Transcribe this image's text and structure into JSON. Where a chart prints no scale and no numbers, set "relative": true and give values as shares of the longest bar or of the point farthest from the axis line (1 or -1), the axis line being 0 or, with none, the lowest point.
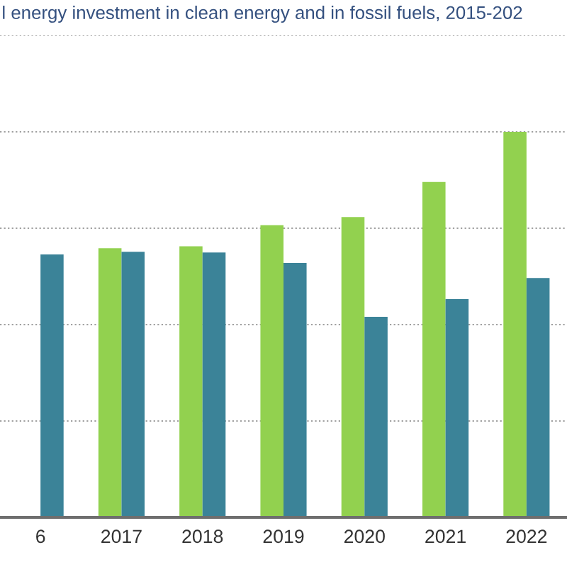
{
  "chart_data": {
    "type": "bar",
    "title": "l energy investment in clean energy and in fossil fuels, 2015-202",
    "categories": [
      "6",
      "2017",
      "2018",
      "2019",
      "2020",
      "2021",
      "2022"
    ],
    "relative": true,
    "grid": "y",
    "series": [
      {
        "color": "#92d14f",
        "values": [
          null,
          0.698,
          0.703,
          0.758,
          0.779,
          0.87,
          1
        ]
      },
      {
        "color": "#3b8398",
        "values": [
          0.682,
          0.689,
          0.687,
          0.66,
          0.52,
          0.566,
          0.621
        ]
      }
    ]
  }
}
